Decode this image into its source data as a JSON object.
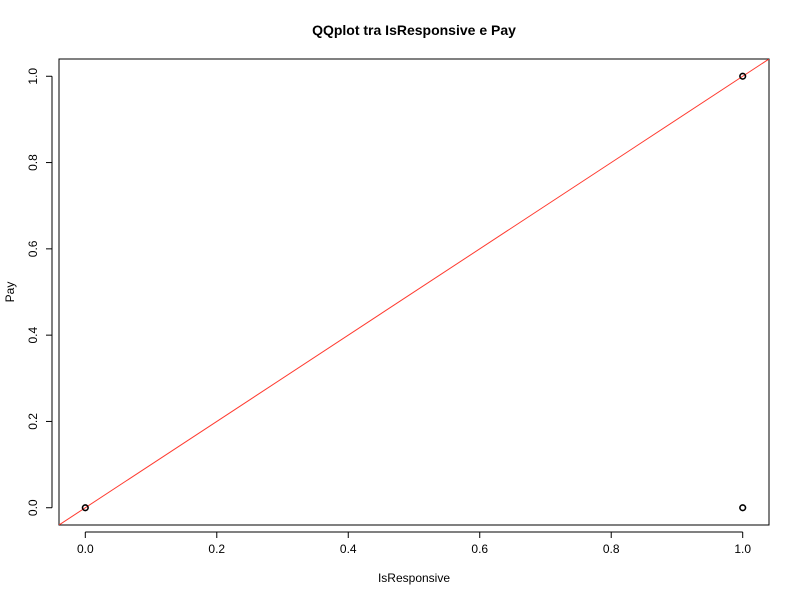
{
  "chart_data": {
    "type": "scatter",
    "title": "QQplot tra IsResponsive e Pay",
    "xlabel": "IsResponsive",
    "ylabel": "Pay",
    "xlim": [
      -0.04,
      1.04
    ],
    "ylim": [
      -0.04,
      1.04
    ],
    "x_ticks": [
      "0.0",
      "0.2",
      "0.4",
      "0.6",
      "0.8",
      "1.0"
    ],
    "y_ticks": [
      "0.0",
      "0.2",
      "0.4",
      "0.6",
      "0.8",
      "1.0"
    ],
    "points": [
      {
        "x": 0,
        "y": 0
      },
      {
        "x": 1,
        "y": 1
      },
      {
        "x": 1,
        "y": 0
      }
    ],
    "reference_line": {
      "intercept": 0,
      "slope": 1,
      "color": "#ff3b30"
    },
    "point_color": "#000000",
    "grid": false
  }
}
